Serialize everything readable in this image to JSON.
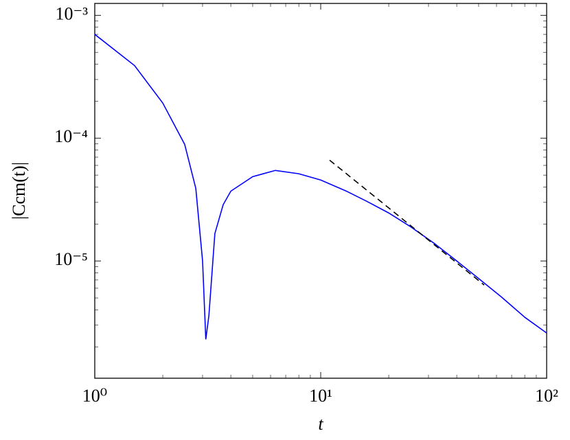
{
  "chart_data": {
    "type": "line",
    "xlabel": "t",
    "ylabel": "|Ccm(t)|",
    "xscale": "log",
    "yscale": "log",
    "xlim": [
      1,
      100
    ],
    "ylim": [
      1.11e-06,
      0.00125
    ],
    "xticks": [
      {
        "value": 1,
        "label": "10⁰"
      },
      {
        "value": 10,
        "label": "10¹"
      },
      {
        "value": 100,
        "label": "10²"
      }
    ],
    "yticks": [
      {
        "value": 1e-05,
        "label": "10⁻⁵"
      },
      {
        "value": 0.0001,
        "label": "10⁻⁴"
      },
      {
        "value": 0.001,
        "label": "10⁻³"
      }
    ],
    "series": [
      {
        "color": "#0000ff",
        "style": "solid",
        "x": [
          1,
          1.5,
          2,
          2.5,
          2.8,
          3.0,
          3.1,
          3.2,
          3.4,
          3.7,
          4,
          5,
          6.3,
          8,
          10,
          13,
          16,
          20,
          25,
          32,
          40,
          50,
          63,
          80,
          100
        ],
        "values": [
          0.0007,
          0.00039,
          0.000193,
          8.9e-05,
          3.9e-05,
          1e-05,
          2.3e-06,
          3.6e-06,
          1.67e-05,
          2.87e-05,
          3.7e-05,
          4.86e-05,
          5.46e-05,
          5.13e-05,
          4.56e-05,
          3.7e-05,
          3.06e-05,
          2.46e-05,
          1.9e-05,
          1.38e-05,
          1e-05,
          7.2e-06,
          5.1e-06,
          3.48e-06,
          2.59e-06
        ]
      },
      {
        "color": "#000000",
        "style": "dashed",
        "x": [
          10.95,
          52.9
        ],
        "values": [
          6.62e-05,
          6.37e-06
        ]
      }
    ]
  }
}
